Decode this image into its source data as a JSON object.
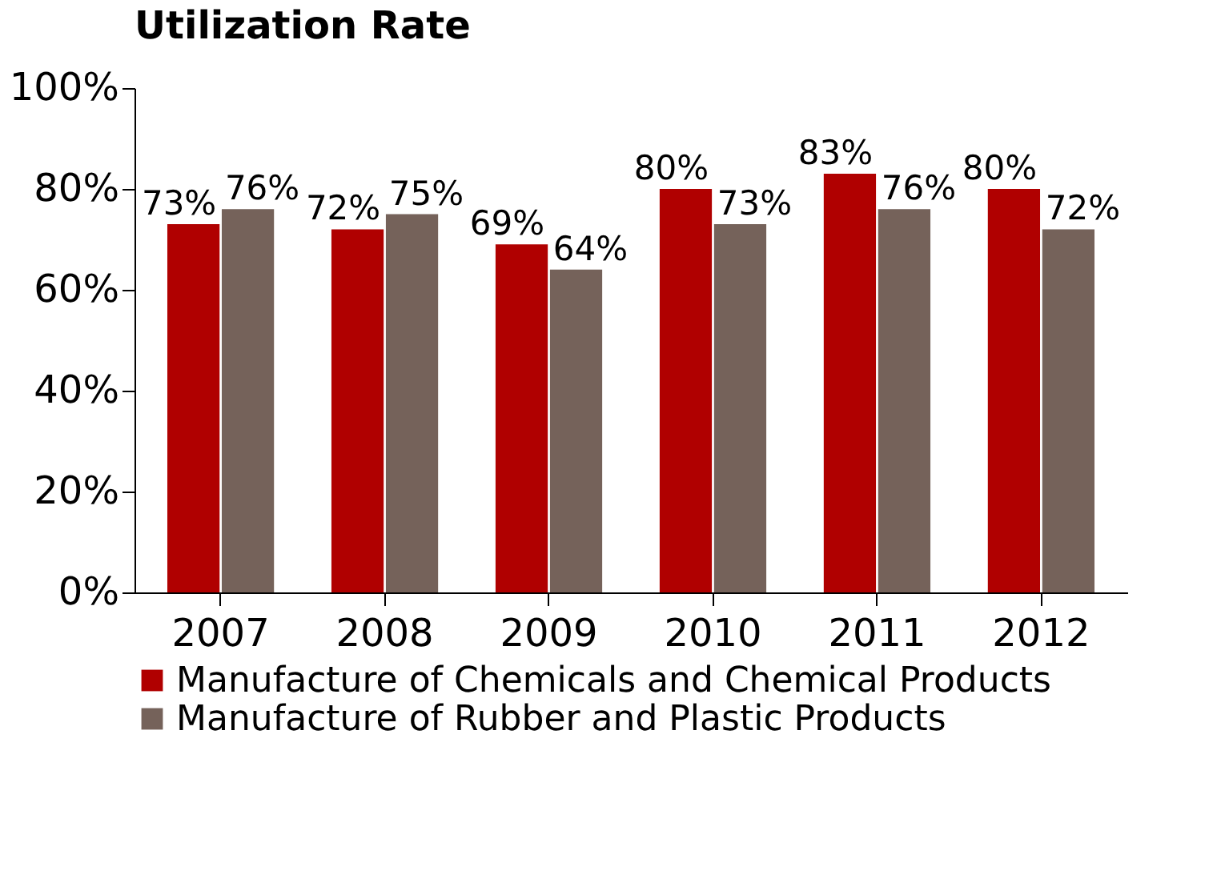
{
  "chart_data": {
    "type": "bar",
    "title": "Utilization Rate",
    "categories": [
      "2007",
      "2008",
      "2009",
      "2010",
      "2011",
      "2012"
    ],
    "series": [
      {
        "name": "Manufacture of Chemicals and Chemical Products",
        "color": "#b00000",
        "values": [
          73,
          72,
          69,
          80,
          83,
          80
        ],
        "value_labels": [
          "73%",
          "72%",
          "69%",
          "80%",
          "83%",
          "80%"
        ]
      },
      {
        "name": "Manufacture of Rubber and Plastic Products",
        "color": "#75625a",
        "values": [
          76,
          75,
          64,
          73,
          76,
          72
        ],
        "value_labels": [
          "76%",
          "75%",
          "64%",
          "73%",
          "76%",
          "72%"
        ]
      }
    ],
    "ylim": [
      0,
      100
    ],
    "yticks": [
      {
        "value": 0,
        "label": "0%"
      },
      {
        "value": 20,
        "label": "20%"
      },
      {
        "value": 40,
        "label": "40%"
      },
      {
        "value": 60,
        "label": "60%"
      },
      {
        "value": 80,
        "label": "80%"
      },
      {
        "value": 100,
        "label": "100%"
      }
    ],
    "grid": false,
    "legend": "bottom"
  }
}
